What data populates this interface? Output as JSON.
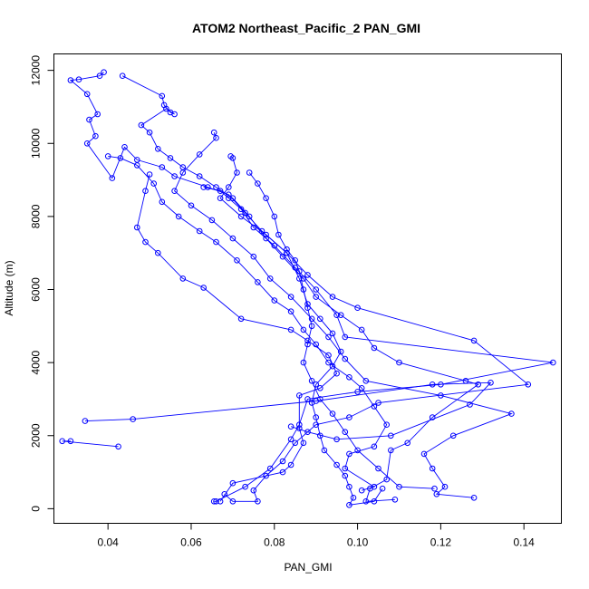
{
  "chart_data": {
    "type": "scatter",
    "title": "ATOM2 Northeast_Pacific_2 PAN_GMI",
    "xlabel": "PAN_GMI",
    "ylabel": "Altitude (m)",
    "xlim": [
      0.027,
      0.149
    ],
    "ylim": [
      -400,
      12450
    ],
    "xticks": [
      0.04,
      0.06,
      0.08,
      0.1,
      0.12,
      0.14
    ],
    "xtick_labels": [
      "0.04",
      "0.06",
      "0.08",
      "0.10",
      "0.12",
      "0.14"
    ],
    "yticks": [
      0,
      2000,
      4000,
      6000,
      8000,
      10000,
      12000
    ],
    "ytick_labels": [
      "0",
      "2000",
      "4000",
      "6000",
      "8000",
      "10000",
      "12000"
    ],
    "grid": false,
    "marker": "open-circle",
    "connected": true,
    "color": "#0000ff",
    "series": [
      {
        "points": [
          [
            0.039,
            11950
          ],
          [
            0.038,
            11850
          ],
          [
            0.033,
            11750
          ],
          [
            0.031,
            11730
          ],
          [
            0.035,
            11350
          ],
          [
            0.0375,
            10800
          ],
          [
            0.0355,
            10650
          ],
          [
            0.037,
            10200
          ],
          [
            0.035,
            10000
          ],
          [
            0.041,
            9050
          ],
          [
            0.044,
            9900
          ],
          [
            0.047,
            9550
          ],
          [
            0.053,
            9350
          ],
          [
            0.056,
            9100
          ],
          [
            0.064,
            8800
          ],
          [
            0.069,
            8600
          ],
          [
            0.073,
            8100
          ],
          [
            0.077,
            7600
          ],
          [
            0.083,
            7000
          ],
          [
            0.086,
            6300
          ],
          [
            0.088,
            5600
          ],
          [
            0.091,
            5200
          ],
          [
            0.094,
            4800
          ],
          [
            0.096,
            4300
          ],
          [
            0.094,
            3900
          ],
          [
            0.09,
            3400
          ],
          [
            0.089,
            2900
          ],
          [
            0.09,
            2500
          ],
          [
            0.091,
            2000
          ],
          [
            0.092,
            1600
          ],
          [
            0.095,
            1200
          ],
          [
            0.097,
            900
          ],
          [
            0.098,
            600
          ],
          [
            0.099,
            300
          ],
          [
            0.098,
            100
          ],
          [
            0.104,
            200
          ],
          [
            0.106,
            550
          ]
        ]
      },
      {
        "points": [
          [
            0.0435,
            11850
          ],
          [
            0.053,
            11300
          ],
          [
            0.0535,
            11050
          ],
          [
            0.055,
            10850
          ],
          [
            0.056,
            10800
          ],
          [
            0.054,
            10950
          ],
          [
            0.048,
            10500
          ],
          [
            0.05,
            10300
          ],
          [
            0.052,
            9850
          ],
          [
            0.055,
            9600
          ],
          [
            0.058,
            9350
          ],
          [
            0.062,
            9100
          ],
          [
            0.066,
            8800
          ],
          [
            0.07,
            8500
          ],
          [
            0.074,
            8000
          ],
          [
            0.078,
            7400
          ],
          [
            0.082,
            6900
          ],
          [
            0.087,
            6300
          ],
          [
            0.09,
            5800
          ],
          [
            0.096,
            5300
          ],
          [
            0.101,
            4900
          ],
          [
            0.104,
            4400
          ],
          [
            0.11,
            4000
          ],
          [
            0.126,
            3500
          ],
          [
            0.129,
            3400
          ],
          [
            0.118,
            2500
          ],
          [
            0.112,
            1800
          ],
          [
            0.108,
            1600
          ],
          [
            0.107,
            800
          ],
          [
            0.103,
            550
          ],
          [
            0.102,
            200
          ],
          [
            0.109,
            250
          ]
        ]
      },
      {
        "points": [
          [
            0.0655,
            10300
          ],
          [
            0.066,
            10150
          ],
          [
            0.062,
            9700
          ],
          [
            0.058,
            9200
          ],
          [
            0.056,
            8700
          ],
          [
            0.06,
            8300
          ],
          [
            0.065,
            7900
          ],
          [
            0.07,
            7400
          ],
          [
            0.075,
            6900
          ],
          [
            0.079,
            6300
          ],
          [
            0.084,
            5800
          ],
          [
            0.089,
            5200
          ],
          [
            0.093,
            4700
          ],
          [
            0.097,
            4100
          ],
          [
            0.102,
            3500
          ],
          [
            0.12,
            3100
          ],
          [
            0.137,
            2600
          ],
          [
            0.123,
            2000
          ],
          [
            0.116,
            1500
          ],
          [
            0.118,
            1100
          ],
          [
            0.121,
            600
          ],
          [
            0.119,
            400
          ],
          [
            0.128,
            300
          ]
        ]
      },
      {
        "points": [
          [
            0.0695,
            9650
          ],
          [
            0.07,
            9600
          ],
          [
            0.071,
            9200
          ],
          [
            0.069,
            8800
          ],
          [
            0.067,
            8500
          ],
          [
            0.072,
            8000
          ],
          [
            0.078,
            7500
          ],
          [
            0.083,
            7000
          ],
          [
            0.088,
            6400
          ],
          [
            0.094,
            5800
          ],
          [
            0.1,
            5500
          ],
          [
            0.128,
            4600
          ],
          [
            0.141,
            3400
          ],
          [
            0.105,
            2900
          ],
          [
            0.098,
            2500
          ],
          [
            0.09,
            2300
          ],
          [
            0.085,
            1800
          ],
          [
            0.082,
            1300
          ],
          [
            0.078,
            900
          ],
          [
            0.075,
            500
          ],
          [
            0.076,
            200
          ],
          [
            0.07,
            200
          ],
          [
            0.068,
            400
          ]
        ]
      },
      {
        "points": [
          [
            0.063,
            8800
          ],
          [
            0.067,
            8700
          ],
          [
            0.069,
            8500
          ],
          [
            0.072,
            8200
          ],
          [
            0.075,
            7700
          ],
          [
            0.08,
            7200
          ],
          [
            0.085,
            6600
          ],
          [
            0.09,
            6000
          ],
          [
            0.095,
            5300
          ],
          [
            0.097,
            4700
          ],
          [
            0.147,
            4000
          ],
          [
            0.12,
            3400
          ],
          [
            0.1,
            3200
          ],
          [
            0.088,
            3000
          ],
          [
            0.086,
            2300
          ],
          [
            0.084,
            1900
          ],
          [
            0.079,
            1100
          ],
          [
            0.073,
            600
          ],
          [
            0.066,
            200
          ],
          [
            0.0655,
            200
          ]
        ]
      },
      {
        "points": [
          [
            0.0345,
            2400
          ],
          [
            0.046,
            2450
          ],
          [
            0.09,
            2950
          ],
          [
            0.118,
            3400
          ],
          [
            0.132,
            3450
          ],
          [
            0.127,
            2850
          ],
          [
            0.108,
            2000
          ],
          [
            0.095,
            1900
          ],
          [
            0.088,
            2100
          ],
          [
            0.084,
            2250
          ]
        ]
      },
      {
        "points": [
          [
            0.031,
            1850
          ],
          [
            0.029,
            1850
          ],
          [
            0.0425,
            1700
          ]
        ]
      },
      {
        "points": [
          [
            0.05,
            9150
          ],
          [
            0.049,
            8700
          ],
          [
            0.047,
            7700
          ],
          [
            0.049,
            7300
          ],
          [
            0.052,
            7000
          ],
          [
            0.058,
            6300
          ],
          [
            0.063,
            6050
          ],
          [
            0.072,
            5200
          ],
          [
            0.084,
            4900
          ],
          [
            0.088,
            4600
          ],
          [
            0.093,
            4200
          ],
          [
            0.095,
            3700
          ],
          [
            0.091,
            3300
          ],
          [
            0.086,
            3100
          ],
          [
            0.086,
            2200
          ],
          [
            0.087,
            1800
          ],
          [
            0.084,
            1200
          ],
          [
            0.082,
            1000
          ],
          [
            0.07,
            700
          ],
          [
            0.067,
            200
          ]
        ]
      },
      {
        "points": [
          [
            0.04,
            9650
          ],
          [
            0.043,
            9600
          ],
          [
            0.047,
            9400
          ],
          [
            0.051,
            8900
          ],
          [
            0.053,
            8400
          ],
          [
            0.057,
            8000
          ],
          [
            0.062,
            7600
          ],
          [
            0.066,
            7300
          ],
          [
            0.071,
            6800
          ],
          [
            0.076,
            6200
          ],
          [
            0.08,
            5700
          ],
          [
            0.084,
            5400
          ],
          [
            0.087,
            4900
          ],
          [
            0.09,
            4500
          ],
          [
            0.093,
            4000
          ],
          [
            0.098,
            3600
          ],
          [
            0.101,
            3300
          ],
          [
            0.104,
            2800
          ],
          [
            0.107,
            2300
          ],
          [
            0.104,
            1700
          ],
          [
            0.098,
            1500
          ],
          [
            0.097,
            1100
          ],
          [
            0.104,
            600
          ],
          [
            0.101,
            500
          ]
        ]
      },
      {
        "points": [
          [
            0.074,
            9200
          ],
          [
            0.076,
            8900
          ],
          [
            0.078,
            8500
          ],
          [
            0.08,
            8000
          ],
          [
            0.081,
            7500
          ],
          [
            0.083,
            7100
          ],
          [
            0.085,
            6800
          ],
          [
            0.086,
            6500
          ],
          [
            0.087,
            6000
          ],
          [
            0.088,
            5500
          ],
          [
            0.089,
            5000
          ],
          [
            0.088,
            4500
          ],
          [
            0.087,
            4000
          ],
          [
            0.089,
            3500
          ],
          [
            0.091,
            3000
          ],
          [
            0.094,
            2600
          ],
          [
            0.097,
            2100
          ],
          [
            0.1,
            1600
          ],
          [
            0.105,
            1100
          ],
          [
            0.11,
            600
          ],
          [
            0.1185,
            550
          ]
        ]
      }
    ]
  }
}
